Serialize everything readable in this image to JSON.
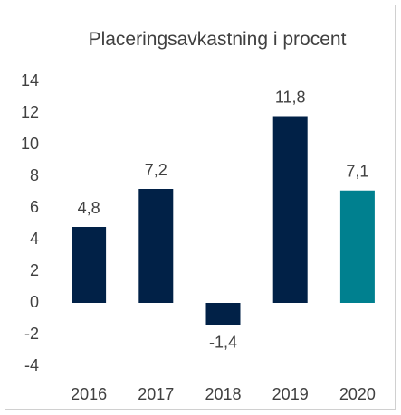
{
  "chart_data": {
    "type": "bar",
    "title": "Placeringsavkastning i procent",
    "categories": [
      "2016",
      "2017",
      "2018",
      "2019",
      "2020"
    ],
    "values": [
      4.8,
      7.2,
      -1.4,
      11.8,
      7.1
    ],
    "value_labels": [
      "4,8",
      "7,2",
      "-1,4",
      "11,8",
      "7,1"
    ],
    "colors": [
      "#012147",
      "#012147",
      "#012147",
      "#012147",
      "#00808f"
    ],
    "ylim": [
      -4,
      14
    ],
    "yticks": [
      -4,
      -2,
      0,
      2,
      4,
      6,
      8,
      10,
      12,
      14
    ],
    "grid": false
  }
}
